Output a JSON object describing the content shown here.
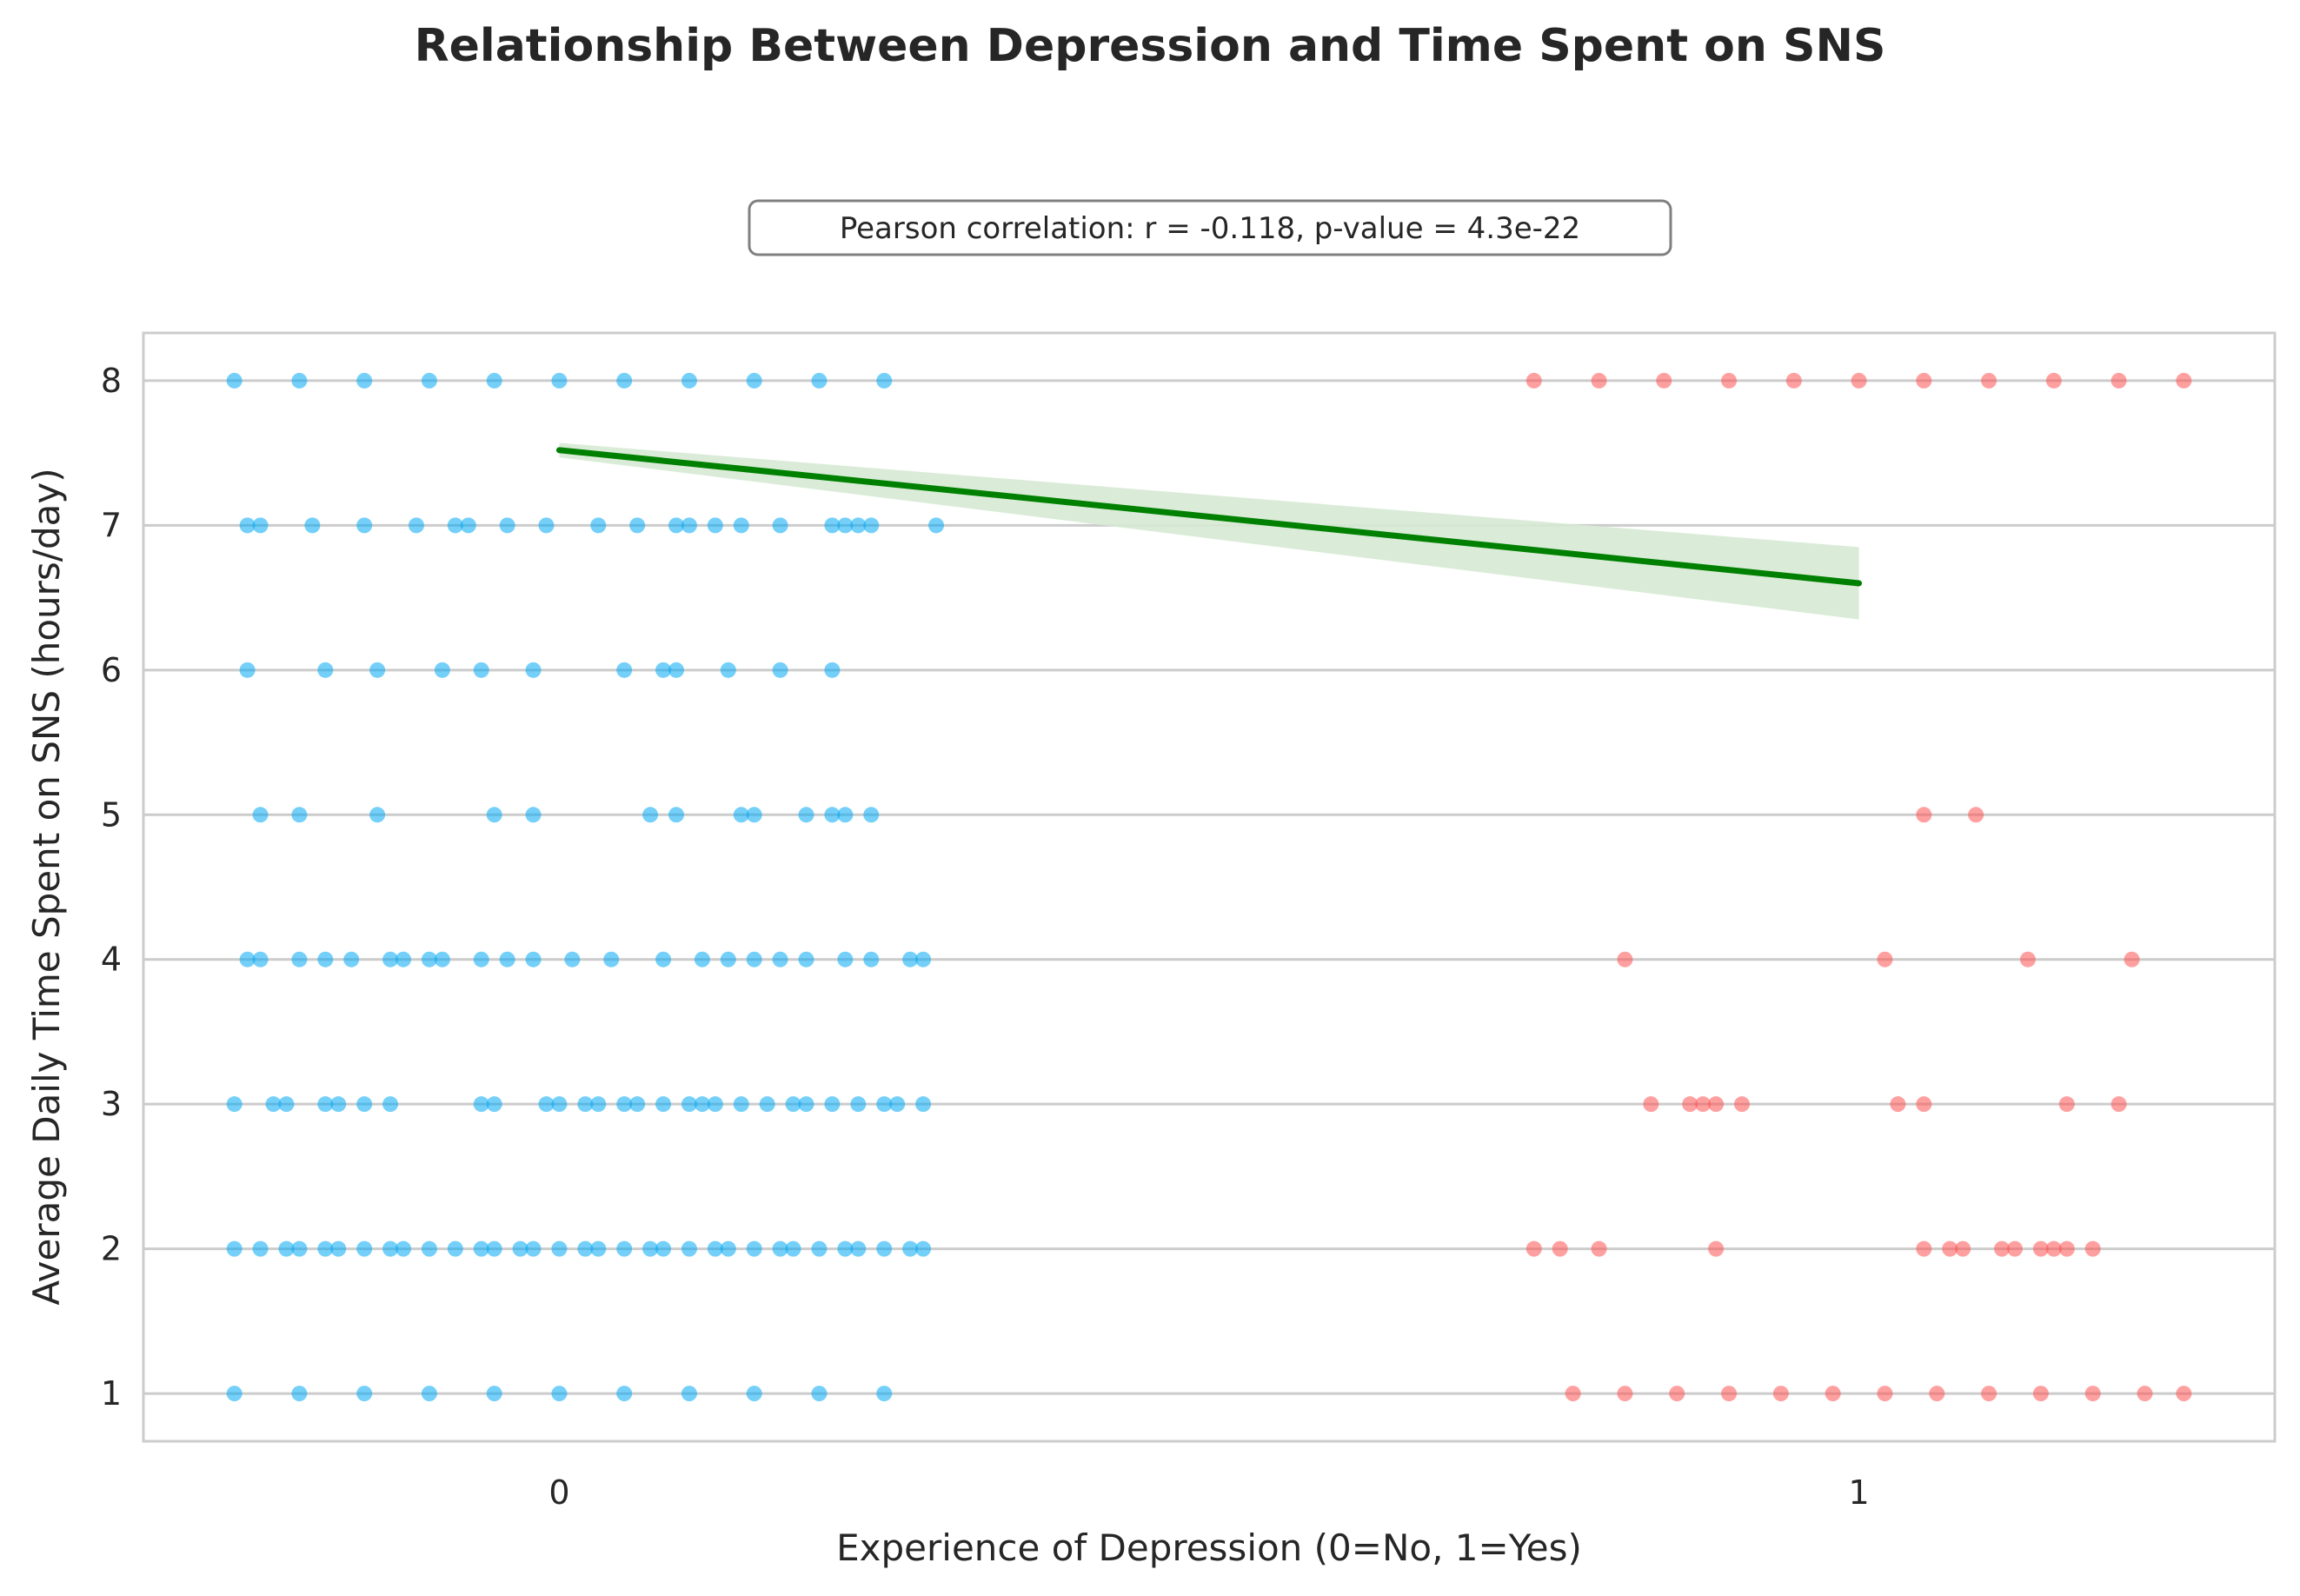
{
  "chart_data": {
    "type": "scatter",
    "title": "Relationship Between Depression and Time Spent on SNS",
    "annotation": "Pearson correlation: r = -0.118, p-value = 4.3e-22",
    "xlabel": "Experience of Depression (0=No, 1=Yes)",
    "ylabel": "Average Daily Time Spent on SNS (hours/day)",
    "x_ticks": [
      "0",
      "1"
    ],
    "y_ticks": [
      "1",
      "2",
      "3",
      "4",
      "5",
      "6",
      "7",
      "8"
    ],
    "xlim": [
      -0.32,
      1.32
    ],
    "ylim": [
      0.67,
      8.33
    ],
    "grid": "horizontal",
    "series": [
      {
        "group": 0,
        "color": "#03a9f4",
        "points": [
          [
            -0.25,
            8
          ],
          [
            -0.2,
            8
          ],
          [
            -0.15,
            8
          ],
          [
            -0.1,
            8
          ],
          [
            -0.05,
            8
          ],
          [
            0,
            8
          ],
          [
            0.05,
            8
          ],
          [
            0.1,
            8
          ],
          [
            0.15,
            8
          ],
          [
            0.2,
            8
          ],
          [
            0.25,
            8
          ],
          [
            -0.24,
            7
          ],
          [
            -0.23,
            7
          ],
          [
            -0.19,
            7
          ],
          [
            -0.15,
            7
          ],
          [
            -0.11,
            7
          ],
          [
            -0.08,
            7
          ],
          [
            -0.07,
            7
          ],
          [
            -0.04,
            7
          ],
          [
            -0.01,
            7
          ],
          [
            0.03,
            7
          ],
          [
            0.06,
            7
          ],
          [
            0.09,
            7
          ],
          [
            0.1,
            7
          ],
          [
            0.12,
            7
          ],
          [
            0.14,
            7
          ],
          [
            0.17,
            7
          ],
          [
            0.21,
            7
          ],
          [
            0.22,
            7
          ],
          [
            0.23,
            7
          ],
          [
            0.24,
            7
          ],
          [
            0.29,
            7
          ],
          [
            -0.24,
            6
          ],
          [
            -0.18,
            6
          ],
          [
            -0.14,
            6
          ],
          [
            -0.09,
            6
          ],
          [
            -0.06,
            6
          ],
          [
            -0.02,
            6
          ],
          [
            0.05,
            6
          ],
          [
            0.08,
            6
          ],
          [
            0.09,
            6
          ],
          [
            0.13,
            6
          ],
          [
            0.17,
            6
          ],
          [
            0.21,
            6
          ],
          [
            -0.23,
            5
          ],
          [
            -0.2,
            5
          ],
          [
            -0.14,
            5
          ],
          [
            -0.05,
            5
          ],
          [
            -0.02,
            5
          ],
          [
            0.07,
            5
          ],
          [
            0.09,
            5
          ],
          [
            0.14,
            5
          ],
          [
            0.15,
            5
          ],
          [
            0.19,
            5
          ],
          [
            0.21,
            5
          ],
          [
            0.22,
            5
          ],
          [
            0.24,
            5
          ],
          [
            -0.24,
            4
          ],
          [
            -0.23,
            4
          ],
          [
            -0.2,
            4
          ],
          [
            -0.18,
            4
          ],
          [
            -0.16,
            4
          ],
          [
            -0.13,
            4
          ],
          [
            -0.12,
            4
          ],
          [
            -0.1,
            4
          ],
          [
            -0.09,
            4
          ],
          [
            -0.06,
            4
          ],
          [
            -0.04,
            4
          ],
          [
            -0.02,
            4
          ],
          [
            0.01,
            4
          ],
          [
            0.04,
            4
          ],
          [
            0.08,
            4
          ],
          [
            0.11,
            4
          ],
          [
            0.13,
            4
          ],
          [
            0.15,
            4
          ],
          [
            0.17,
            4
          ],
          [
            0.19,
            4
          ],
          [
            0.22,
            4
          ],
          [
            0.24,
            4
          ],
          [
            0.27,
            4
          ],
          [
            0.28,
            4
          ],
          [
            -0.25,
            3
          ],
          [
            -0.22,
            3
          ],
          [
            -0.21,
            3
          ],
          [
            -0.18,
            3
          ],
          [
            -0.17,
            3
          ],
          [
            -0.15,
            3
          ],
          [
            -0.13,
            3
          ],
          [
            -0.06,
            3
          ],
          [
            -0.05,
            3
          ],
          [
            -0.01,
            3
          ],
          [
            0,
            3
          ],
          [
            0.02,
            3
          ],
          [
            0.03,
            3
          ],
          [
            0.05,
            3
          ],
          [
            0.06,
            3
          ],
          [
            0.08,
            3
          ],
          [
            0.1,
            3
          ],
          [
            0.11,
            3
          ],
          [
            0.12,
            3
          ],
          [
            0.14,
            3
          ],
          [
            0.16,
            3
          ],
          [
            0.18,
            3
          ],
          [
            0.19,
            3
          ],
          [
            0.21,
            3
          ],
          [
            0.23,
            3
          ],
          [
            0.25,
            3
          ],
          [
            0.26,
            3
          ],
          [
            0.28,
            3
          ],
          [
            -0.25,
            2
          ],
          [
            -0.23,
            2
          ],
          [
            -0.21,
            2
          ],
          [
            -0.2,
            2
          ],
          [
            -0.18,
            2
          ],
          [
            -0.17,
            2
          ],
          [
            -0.15,
            2
          ],
          [
            -0.13,
            2
          ],
          [
            -0.12,
            2
          ],
          [
            -0.1,
            2
          ],
          [
            -0.08,
            2
          ],
          [
            -0.06,
            2
          ],
          [
            -0.05,
            2
          ],
          [
            -0.03,
            2
          ],
          [
            -0.02,
            2
          ],
          [
            0,
            2
          ],
          [
            0.02,
            2
          ],
          [
            0.03,
            2
          ],
          [
            0.05,
            2
          ],
          [
            0.07,
            2
          ],
          [
            0.08,
            2
          ],
          [
            0.1,
            2
          ],
          [
            0.12,
            2
          ],
          [
            0.13,
            2
          ],
          [
            0.15,
            2
          ],
          [
            0.17,
            2
          ],
          [
            0.18,
            2
          ],
          [
            0.2,
            2
          ],
          [
            0.22,
            2
          ],
          [
            0.23,
            2
          ],
          [
            0.25,
            2
          ],
          [
            0.27,
            2
          ],
          [
            0.28,
            2
          ],
          [
            -0.25,
            1
          ],
          [
            -0.2,
            1
          ],
          [
            -0.15,
            1
          ],
          [
            -0.1,
            1
          ],
          [
            -0.05,
            1
          ],
          [
            0,
            1
          ],
          [
            0.05,
            1
          ],
          [
            0.1,
            1
          ],
          [
            0.15,
            1
          ],
          [
            0.2,
            1
          ],
          [
            0.25,
            1
          ]
        ]
      },
      {
        "group": 1,
        "color": "#ff5252",
        "points": [
          [
            0.75,
            8
          ],
          [
            0.8,
            8
          ],
          [
            0.85,
            8
          ],
          [
            0.9,
            8
          ],
          [
            0.95,
            8
          ],
          [
            1,
            8
          ],
          [
            1.05,
            8
          ],
          [
            1.1,
            8
          ],
          [
            1.15,
            8
          ],
          [
            1.2,
            8
          ],
          [
            1.25,
            8
          ],
          [
            1.05,
            5
          ],
          [
            1.09,
            5
          ],
          [
            0.82,
            4
          ],
          [
            1.02,
            4
          ],
          [
            1.13,
            4
          ],
          [
            1.21,
            4
          ],
          [
            0.84,
            3
          ],
          [
            0.87,
            3
          ],
          [
            0.88,
            3
          ],
          [
            0.89,
            3
          ],
          [
            0.91,
            3
          ],
          [
            1.03,
            3
          ],
          [
            1.05,
            3
          ],
          [
            1.16,
            3
          ],
          [
            1.2,
            3
          ],
          [
            0.75,
            2
          ],
          [
            0.77,
            2
          ],
          [
            0.8,
            2
          ],
          [
            0.89,
            2
          ],
          [
            1.05,
            2
          ],
          [
            1.07,
            2
          ],
          [
            1.08,
            2
          ],
          [
            1.11,
            2
          ],
          [
            1.12,
            2
          ],
          [
            1.14,
            2
          ],
          [
            1.15,
            2
          ],
          [
            1.16,
            2
          ],
          [
            1.18,
            2
          ],
          [
            0.78,
            1
          ],
          [
            0.82,
            1
          ],
          [
            0.86,
            1
          ],
          [
            0.9,
            1
          ],
          [
            0.94,
            1
          ],
          [
            0.98,
            1
          ],
          [
            1.02,
            1
          ],
          [
            1.06,
            1
          ],
          [
            1.1,
            1
          ],
          [
            1.14,
            1
          ],
          [
            1.18,
            1
          ],
          [
            1.22,
            1
          ],
          [
            1.25,
            1
          ]
        ]
      }
    ],
    "regression": {
      "color": "#008000",
      "ci_color": "#d6ead4",
      "x": [
        0,
        1
      ],
      "y": [
        7.52,
        6.6
      ],
      "ci_lower": [
        7.47,
        6.35
      ],
      "ci_upper": [
        7.57,
        6.85
      ]
    }
  }
}
